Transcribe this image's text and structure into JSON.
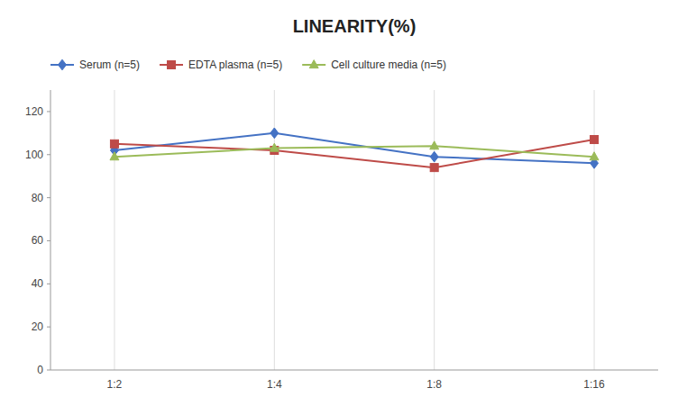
{
  "chart_data": {
    "type": "line",
    "title": "LINEARITY(%)",
    "categories": [
      "1:2",
      "1:4",
      "1:8",
      "1:16"
    ],
    "series": [
      {
        "name": "Serum (n=5)",
        "color": "#4472C4",
        "marker": "diamond",
        "values": [
          102,
          110,
          99,
          96
        ]
      },
      {
        "name": "EDTA plasma (n=5)",
        "color": "#BE4B48",
        "marker": "square",
        "values": [
          105,
          102,
          94,
          107
        ]
      },
      {
        "name": "Cell culture media (n=5)",
        "color": "#9BBB59",
        "marker": "triangle",
        "values": [
          99,
          103,
          104,
          99
        ]
      }
    ],
    "ylim": [
      0,
      130
    ],
    "yticks": [
      0,
      20,
      40,
      60,
      80,
      100,
      120
    ],
    "grid": true,
    "legend": "top"
  }
}
